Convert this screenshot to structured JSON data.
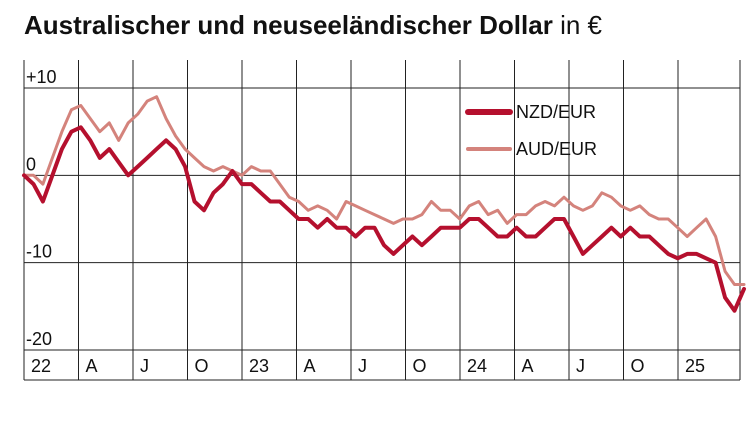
{
  "title": "Australischer und neuseeländischer Dollar",
  "unit": "in €",
  "chart_data": {
    "type": "line",
    "ylim": [
      -20,
      10
    ],
    "y_ticks": [
      {
        "value": 10,
        "label": "+10"
      },
      {
        "value": 0,
        "label": "0"
      },
      {
        "value": -10,
        "label": "-10"
      },
      {
        "value": -20,
        "label": "-20"
      }
    ],
    "x_ticks": [
      "22",
      "A",
      "J",
      "O",
      "23",
      "A",
      "J",
      "O",
      "24",
      "A",
      "J",
      "O",
      "25"
    ],
    "legend_position": "top-right",
    "series": [
      {
        "name": "NZD/EUR",
        "color": "#b5102e",
        "values": [
          0,
          -1,
          -3,
          0,
          3,
          5,
          5.5,
          4,
          2,
          3,
          1.5,
          0,
          1,
          2,
          3,
          4,
          3,
          1,
          -3,
          -4,
          -2,
          -1,
          0.5,
          -1,
          -1,
          -2,
          -3,
          -3,
          -4,
          -5,
          -5,
          -6,
          -5,
          -6,
          -6,
          -7,
          -6,
          -6,
          -8,
          -9,
          -8,
          -7,
          -8,
          -7,
          -6,
          -6,
          -6,
          -5,
          -5,
          -6,
          -7,
          -7,
          -6,
          -7,
          -7,
          -6,
          -5,
          -5,
          -7,
          -9,
          -8,
          -7,
          -6,
          -7,
          -6,
          -7,
          -7,
          -8,
          -9,
          -9.5,
          -9,
          -9,
          -9.5,
          -10,
          -14,
          -15.5,
          -13
        ]
      },
      {
        "name": "AUD/EUR",
        "color": "#d4837c",
        "values": [
          0,
          0,
          -1,
          2,
          5,
          7.5,
          8,
          6.5,
          5,
          6,
          4,
          6,
          7,
          8.5,
          9,
          6.5,
          4.5,
          3,
          2,
          1,
          0.5,
          1,
          0.5,
          0,
          1,
          0.5,
          0.5,
          -1,
          -2.5,
          -3,
          -4,
          -3.5,
          -4,
          -5,
          -3,
          -3.5,
          -4,
          -4.5,
          -5,
          -5.5,
          -5,
          -5,
          -4.5,
          -3,
          -4,
          -4,
          -5,
          -3.5,
          -3,
          -4.5,
          -4,
          -5.5,
          -4.5,
          -4.5,
          -3.5,
          -3,
          -3.5,
          -2.5,
          -3.5,
          -4,
          -3.5,
          -2,
          -2.5,
          -3.5,
          -4,
          -3.5,
          -4.5,
          -5,
          -5,
          -6,
          -7,
          -6,
          -5,
          -7,
          -11,
          -12.5,
          -12.5
        ]
      }
    ]
  }
}
